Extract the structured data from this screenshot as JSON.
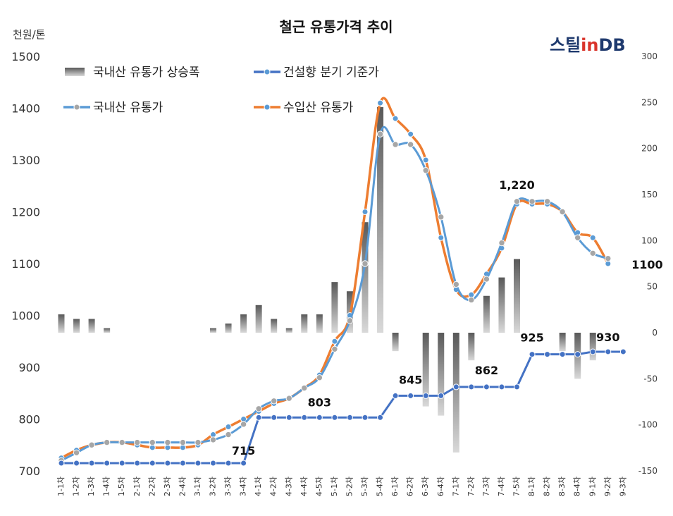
{
  "chart_data": {
    "type": "line",
    "title": "철근 유통가격 추이",
    "ylabel": "천원/톤",
    "logo": {
      "text": "스틸inDB",
      "color_dark": "#1f3a6e",
      "color_accent": "#d9342b"
    },
    "ylim": [
      700,
      1500
    ],
    "yticks": [
      700,
      800,
      900,
      1000,
      1100,
      1200,
      1300,
      1400,
      1500
    ],
    "y2lim": [
      -150,
      300
    ],
    "y2ticks": [
      -150,
      -100,
      -50,
      0,
      50,
      100,
      150,
      200,
      250,
      300
    ],
    "categories": [
      "1-1차",
      "1-2차",
      "1-3차",
      "1-4차",
      "1-5차",
      "2-1차",
      "2-2차",
      "2-3차",
      "2-4차",
      "3-1차",
      "3-2차",
      "3-3차",
      "3-4차",
      "4-1차",
      "4-2차",
      "4-3차",
      "4-4차",
      "4-5차",
      "5-1차",
      "5-2차",
      "5-3차",
      "5-4차",
      "6-1차",
      "6-2차",
      "6-3차",
      "6-4차",
      "7-1차",
      "7-2차",
      "7-3차",
      "7-4차",
      "7-5차",
      "8-1차",
      "8-2차",
      "8-3차",
      "8-4차",
      "9-1차",
      "9-2차",
      "9-3차"
    ],
    "series": [
      {
        "name": "국내산 유통가 상승폭",
        "type": "bar",
        "axis": "right",
        "color": "#7f7f7f",
        "values": [
          20,
          15,
          15,
          5,
          null,
          null,
          null,
          null,
          null,
          null,
          5,
          10,
          20,
          30,
          15,
          5,
          20,
          20,
          55,
          45,
          120,
          245,
          -20,
          null,
          -80,
          -90,
          -130,
          -30,
          40,
          60,
          80,
          null,
          null,
          -20,
          -50,
          -30,
          null,
          null
        ]
      },
      {
        "name": "건설향 분기 기준가",
        "type": "line",
        "axis": "left",
        "color": "#4472c4",
        "values": [
          715,
          715,
          715,
          715,
          715,
          715,
          715,
          715,
          715,
          715,
          715,
          715,
          715,
          803,
          803,
          803,
          803,
          803,
          803,
          803,
          803,
          803,
          845,
          845,
          845,
          845,
          862,
          862,
          862,
          862,
          862,
          925,
          925,
          925,
          925,
          930,
          930,
          930
        ]
      },
      {
        "name": "국내산 유통가",
        "type": "line",
        "axis": "left",
        "color": "#5b9bd5",
        "values": [
          720,
          735,
          750,
          755,
          755,
          755,
          755,
          755,
          755,
          755,
          760,
          770,
          790,
          820,
          835,
          840,
          860,
          880,
          935,
          990,
          1100,
          1350,
          1330,
          1330,
          1280,
          1190,
          1060,
          1030,
          1070,
          1140,
          1220,
          1220,
          1220,
          1200,
          1150,
          1120,
          1110,
          null
        ]
      },
      {
        "name": "수입산 유통가",
        "type": "line",
        "axis": "left",
        "color": "#ed7d31",
        "values": [
          725,
          740,
          750,
          755,
          755,
          750,
          745,
          745,
          745,
          750,
          770,
          785,
          800,
          815,
          830,
          840,
          860,
          885,
          950,
          1000,
          1200,
          1410,
          1380,
          1350,
          1300,
          1150,
          1050,
          1040,
          1080,
          1130,
          1215,
          1215,
          1215,
          1200,
          1160,
          1150,
          1100,
          null
        ]
      }
    ],
    "annotations": [
      {
        "text": "715",
        "index": 12,
        "value": 715
      },
      {
        "text": "803",
        "index": 17,
        "value": 803
      },
      {
        "text": "845",
        "index": 23,
        "value": 845
      },
      {
        "text": "862",
        "index": 28,
        "value": 862
      },
      {
        "text": "925",
        "index": 31,
        "value": 925
      },
      {
        "text": "930",
        "index": 36,
        "value": 930
      },
      {
        "text": "1,220",
        "index": 30,
        "value": 1220
      },
      {
        "text": "1100",
        "index": 37,
        "value": 1100
      }
    ],
    "legend": [
      {
        "label": "국내산 유통가 상승폭",
        "kind": "bar"
      },
      {
        "label": "건설향 분기 기준가",
        "kind": "line",
        "color": "#4472c4"
      },
      {
        "label": "국내산 유통가",
        "kind": "line",
        "color": "#5b9bd5"
      },
      {
        "label": "수입산 유통가",
        "kind": "line",
        "color": "#ed7d31"
      }
    ],
    "legend_position": "top-left",
    "grid": false
  }
}
